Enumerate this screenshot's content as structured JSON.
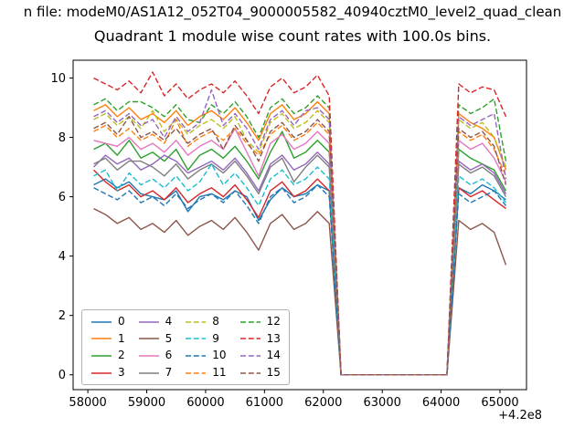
{
  "figure": {
    "suptitle": "n file: modeM0/AS1A12_052T04_9000005582_40940cztM0_level2_quad_clean",
    "title": "Quadrant 1 module wise count rates with 100.0s bins.",
    "offset_text": "+4.2e8",
    "background": "#ffffff"
  },
  "chart_data": {
    "type": "line",
    "title": "Quadrant 1 module wise count rates with 100.0s bins.",
    "xlabel": "",
    "ylabel": "",
    "x_axis_offset": "+4.2e8",
    "grid": false,
    "legend_position": "lower-left",
    "legend_columns": 4,
    "xlim": [
      57750,
      65450
    ],
    "ylim": [
      -0.5,
      10.6
    ],
    "xticks": [
      58000,
      59000,
      60000,
      61000,
      62000,
      63000,
      64000,
      65000
    ],
    "yticks": [
      0,
      2,
      4,
      6,
      8,
      10
    ],
    "x": [
      58100,
      58300,
      58500,
      58700,
      58900,
      59100,
      59300,
      59500,
      59700,
      59900,
      60100,
      60300,
      60500,
      60700,
      60900,
      61100,
      61300,
      61500,
      61700,
      61900,
      62100,
      62300,
      62500,
      62700,
      62900,
      63100,
      63300,
      63500,
      63700,
      63900,
      64100,
      64300,
      64500,
      64700,
      64900,
      65100
    ],
    "series": [
      {
        "name": "0",
        "color": "#1f77b4",
        "dash": "solid",
        "values": [
          6.4,
          6.6,
          6.3,
          6.5,
          6.1,
          6.0,
          5.9,
          6.2,
          5.5,
          6.0,
          6.1,
          5.9,
          6.2,
          6.0,
          5.2,
          5.9,
          6.3,
          6.0,
          6.1,
          6.4,
          6.2,
          0,
          0,
          0,
          0,
          0,
          0,
          0,
          0,
          0,
          0,
          6.3,
          6.1,
          6.4,
          6.2,
          5.9
        ]
      },
      {
        "name": "1",
        "color": "#ff7f0e",
        "dash": "solid",
        "values": [
          8.9,
          9.1,
          8.7,
          9.0,
          8.6,
          8.8,
          8.5,
          8.9,
          8.4,
          8.7,
          8.9,
          8.6,
          9.0,
          8.5,
          7.9,
          8.8,
          9.1,
          8.6,
          8.8,
          9.2,
          8.8,
          0,
          0,
          0,
          0,
          0,
          0,
          0,
          0,
          0,
          0,
          8.8,
          8.5,
          8.3,
          8.0,
          6.9
        ]
      },
      {
        "name": "2",
        "color": "#2ca02c",
        "dash": "solid",
        "values": [
          7.6,
          7.8,
          7.4,
          7.9,
          7.3,
          7.5,
          7.2,
          7.6,
          6.9,
          7.4,
          7.6,
          7.3,
          7.7,
          7.2,
          6.6,
          7.5,
          8.2,
          7.3,
          7.5,
          7.9,
          7.5,
          0,
          0,
          0,
          0,
          0,
          0,
          0,
          0,
          0,
          0,
          7.6,
          7.3,
          7.1,
          6.9,
          6.2
        ]
      },
      {
        "name": "3",
        "color": "#d62728",
        "dash": "solid",
        "values": [
          6.9,
          6.5,
          6.2,
          6.4,
          6.0,
          6.2,
          5.9,
          6.3,
          5.8,
          6.1,
          6.3,
          6.0,
          6.4,
          5.9,
          5.3,
          6.2,
          6.5,
          6.0,
          6.2,
          6.6,
          6.2,
          0,
          0,
          0,
          0,
          0,
          0,
          0,
          0,
          0,
          0,
          6.3,
          6.0,
          6.2,
          5.9,
          5.6
        ]
      },
      {
        "name": "4",
        "color": "#9467bd",
        "dash": "solid",
        "values": [
          7.0,
          7.4,
          7.1,
          7.3,
          6.9,
          7.1,
          7.4,
          7.2,
          6.8,
          7.0,
          7.2,
          6.9,
          7.3,
          6.8,
          6.2,
          7.1,
          7.4,
          6.9,
          7.1,
          7.5,
          7.1,
          0,
          0,
          0,
          0,
          0,
          0,
          0,
          0,
          0,
          0,
          7.2,
          6.9,
          7.1,
          6.8,
          6.1
        ]
      },
      {
        "name": "5",
        "color": "#8c564b",
        "dash": "solid",
        "values": [
          5.6,
          5.4,
          5.1,
          5.3,
          4.9,
          5.1,
          4.8,
          5.2,
          4.7,
          5.0,
          5.2,
          4.9,
          5.3,
          4.8,
          4.2,
          5.1,
          5.4,
          4.9,
          5.1,
          5.5,
          5.1,
          0,
          0,
          0,
          0,
          0,
          0,
          0,
          0,
          0,
          0,
          5.2,
          4.9,
          5.1,
          4.8,
          3.7
        ]
      },
      {
        "name": "6",
        "color": "#e377c2",
        "dash": "solid",
        "values": [
          7.9,
          7.8,
          7.7,
          8.0,
          7.6,
          7.8,
          7.5,
          7.9,
          7.4,
          7.7,
          7.9,
          7.6,
          8.3,
          7.5,
          6.7,
          7.8,
          8.1,
          7.6,
          7.8,
          8.2,
          7.8,
          0,
          0,
          0,
          0,
          0,
          0,
          0,
          0,
          0,
          0,
          7.9,
          7.6,
          7.8,
          7.3,
          6.5
        ]
      },
      {
        "name": "7",
        "color": "#7f7f7f",
        "dash": "solid",
        "values": [
          7.1,
          7.3,
          6.9,
          7.2,
          7.2,
          7.0,
          6.7,
          7.1,
          6.6,
          6.9,
          7.1,
          6.8,
          7.2,
          6.7,
          6.1,
          7.0,
          7.3,
          6.5,
          7.0,
          7.4,
          7.0,
          0,
          0,
          0,
          0,
          0,
          0,
          0,
          0,
          0,
          0,
          7.1,
          6.8,
          7.0,
          6.7,
          6.0
        ]
      },
      {
        "name": "8",
        "color": "#bcbd22",
        "dash": "dashed",
        "values": [
          8.6,
          8.8,
          8.4,
          8.7,
          8.3,
          8.9,
          8.2,
          8.6,
          8.1,
          8.4,
          8.6,
          8.3,
          8.7,
          7.9,
          7.5,
          8.5,
          8.8,
          8.3,
          8.5,
          8.9,
          8.5,
          0,
          0,
          0,
          0,
          0,
          0,
          0,
          0,
          0,
          0,
          8.6,
          8.3,
          8.5,
          8.0,
          7.0
        ]
      },
      {
        "name": "9",
        "color": "#17becf",
        "dash": "dashed",
        "values": [
          6.7,
          6.9,
          6.2,
          6.8,
          6.4,
          6.6,
          6.3,
          6.7,
          6.2,
          6.5,
          7.1,
          6.4,
          6.8,
          6.3,
          5.7,
          6.6,
          6.9,
          6.4,
          6.6,
          7.0,
          6.6,
          0,
          0,
          0,
          0,
          0,
          0,
          0,
          0,
          0,
          0,
          6.7,
          6.4,
          6.6,
          6.3,
          5.8
        ]
      },
      {
        "name": "10",
        "color": "#1f77b4",
        "dash": "dashed",
        "values": [
          6.3,
          6.1,
          5.9,
          6.2,
          5.8,
          6.0,
          5.7,
          6.1,
          5.6,
          5.9,
          6.1,
          5.8,
          6.2,
          5.7,
          5.1,
          6.0,
          6.3,
          5.8,
          6.0,
          6.4,
          6.0,
          0,
          0,
          0,
          0,
          0,
          0,
          0,
          0,
          0,
          0,
          6.1,
          5.8,
          6.0,
          6.2,
          5.7
        ]
      },
      {
        "name": "11",
        "color": "#ff7f0e",
        "dash": "dashed",
        "values": [
          8.2,
          8.4,
          8.0,
          8.3,
          7.9,
          8.1,
          7.8,
          8.6,
          7.7,
          8.0,
          8.2,
          7.9,
          8.3,
          7.8,
          7.4,
          8.1,
          8.4,
          7.9,
          8.1,
          8.5,
          8.1,
          0,
          0,
          0,
          0,
          0,
          0,
          0,
          0,
          0,
          0,
          8.2,
          7.9,
          8.1,
          7.6,
          6.7
        ]
      },
      {
        "name": "12",
        "color": "#2ca02c",
        "dash": "dashed",
        "values": [
          9.1,
          9.3,
          8.9,
          9.2,
          9.2,
          9.0,
          8.7,
          9.1,
          8.6,
          8.5,
          9.1,
          8.8,
          9.2,
          8.7,
          8.0,
          9.0,
          9.3,
          8.8,
          9.0,
          9.4,
          9.0,
          0,
          0,
          0,
          0,
          0,
          0,
          0,
          0,
          0,
          0,
          9.1,
          8.8,
          9.0,
          9.3,
          7.2
        ]
      },
      {
        "name": "13",
        "color": "#d62728",
        "dash": "dashed",
        "values": [
          10.0,
          9.8,
          9.6,
          9.9,
          9.5,
          10.2,
          9.4,
          9.8,
          9.3,
          9.6,
          9.8,
          9.5,
          9.9,
          9.4,
          8.8,
          9.7,
          10.0,
          9.5,
          9.7,
          10.1,
          9.4,
          0,
          0,
          0,
          0,
          0,
          0,
          0,
          0,
          0,
          0,
          9.8,
          9.5,
          9.7,
          9.6,
          8.7
        ]
      },
      {
        "name": "14",
        "color": "#9467bd",
        "dash": "dashed",
        "values": [
          8.7,
          8.9,
          8.5,
          8.8,
          8.4,
          8.6,
          8.0,
          8.7,
          8.2,
          8.5,
          9.6,
          8.4,
          8.8,
          8.3,
          7.6,
          8.6,
          8.9,
          8.4,
          8.9,
          9.0,
          8.6,
          0,
          0,
          0,
          0,
          0,
          0,
          0,
          0,
          0,
          0,
          8.7,
          8.4,
          8.6,
          8.8,
          6.6
        ]
      },
      {
        "name": "15",
        "color": "#8c564b",
        "dash": "dashed",
        "values": [
          8.3,
          8.5,
          8.1,
          8.7,
          8.0,
          8.2,
          7.9,
          8.3,
          7.8,
          8.1,
          8.3,
          7.6,
          8.4,
          7.9,
          7.2,
          8.2,
          8.5,
          8.0,
          8.2,
          8.6,
          8.2,
          0,
          0,
          0,
          0,
          0,
          0,
          0,
          0,
          0,
          0,
          8.3,
          8.0,
          8.2,
          7.7,
          6.4
        ]
      }
    ]
  }
}
